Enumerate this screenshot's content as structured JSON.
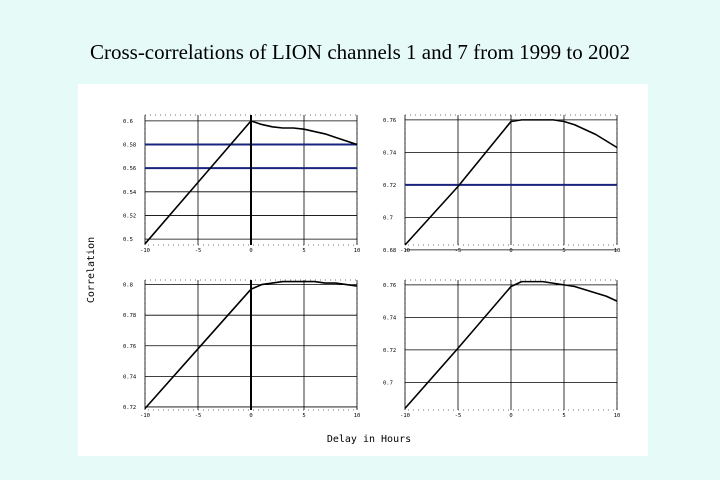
{
  "title": "Cross-correlations of LION channels 1 and 7 from 1999 to 2002",
  "chart_data": [
    {
      "type": "line",
      "xlabel": "Delay in Hours",
      "ylabel": "Correlation",
      "xlim": [
        -10,
        10
      ],
      "ylim": [
        0.495,
        0.605
      ],
      "xticks": [
        -10,
        -5,
        0,
        5,
        10
      ],
      "xtick_labels": [
        "-10",
        "-5",
        "0",
        "5",
        "10"
      ],
      "yticks": [
        0.5,
        0.52,
        0.54,
        0.56,
        0.58,
        0.6
      ],
      "ytick_labels": [
        "0.5",
        "0.52",
        "0.54",
        "0.56",
        "0.58",
        "0.6"
      ],
      "grid": true,
      "vlines": [
        0
      ],
      "hlines": [
        {
          "y": 0.58,
          "color": "#1a237e"
        },
        {
          "y": 0.56,
          "color": "#1a237e"
        }
      ],
      "x": [
        -10,
        -5,
        0,
        1,
        2,
        3,
        4,
        5,
        6,
        7,
        8,
        9,
        10
      ],
      "y": [
        0.496,
        0.548,
        0.6,
        0.597,
        0.595,
        0.594,
        0.594,
        0.593,
        0.591,
        0.589,
        0.586,
        0.583,
        0.58
      ]
    },
    {
      "type": "line",
      "xlim": [
        -10,
        10
      ],
      "ylim": [
        0.683,
        0.763
      ],
      "xticks": [
        -10,
        -5,
        0,
        5,
        10
      ],
      "xtick_labels": [
        "-10",
        "-5",
        "0",
        "5",
        "10"
      ],
      "yticks": [
        0.68,
        0.7,
        0.72,
        0.74,
        0.76
      ],
      "ytick_labels": [
        "0.68",
        "0.7",
        "0.72",
        "0.74",
        "0.76"
      ],
      "grid": true,
      "hlines": [
        {
          "y": 0.72,
          "color": "#1a237e"
        }
      ],
      "x": [
        -10,
        -5,
        0,
        1,
        2,
        3,
        4,
        5,
        6,
        7,
        8,
        9,
        10
      ],
      "y": [
        0.683,
        0.719,
        0.759,
        0.76,
        0.76,
        0.76,
        0.76,
        0.759,
        0.757,
        0.754,
        0.751,
        0.747,
        0.743
      ]
    },
    {
      "type": "line",
      "xlim": [
        -10,
        10
      ],
      "ylim": [
        0.718,
        0.803
      ],
      "xticks": [
        -10,
        -5,
        0,
        5,
        10
      ],
      "xtick_labels": [
        "-10",
        "-5",
        "0",
        "5",
        "10"
      ],
      "yticks": [
        0.72,
        0.74,
        0.76,
        0.78,
        0.8
      ],
      "ytick_labels": [
        "0.72",
        "0.74",
        "0.76",
        "0.78",
        "0.8"
      ],
      "grid": true,
      "vlines": [
        0
      ],
      "x": [
        -10,
        -5,
        0,
        1,
        2,
        3,
        4,
        5,
        6,
        7,
        8,
        9,
        10
      ],
      "y": [
        0.719,
        0.758,
        0.797,
        0.8,
        0.801,
        0.802,
        0.802,
        0.802,
        0.802,
        0.801,
        0.801,
        0.8,
        0.799
      ]
    },
    {
      "type": "line",
      "xlim": [
        -10,
        10
      ],
      "ylim": [
        0.683,
        0.763
      ],
      "xticks": [
        -10,
        -5,
        0,
        5,
        10
      ],
      "xtick_labels": [
        "-10",
        "-5",
        "0",
        "5",
        "10"
      ],
      "yticks": [
        0.7,
        0.72,
        0.74,
        0.76
      ],
      "ytick_labels": [
        "0.7",
        "0.72",
        "0.74",
        "0.76"
      ],
      "grid": true,
      "x": [
        -10,
        -5,
        0,
        1,
        2,
        3,
        4,
        5,
        6,
        7,
        8,
        9,
        10
      ],
      "y": [
        0.684,
        0.721,
        0.759,
        0.762,
        0.762,
        0.762,
        0.761,
        0.76,
        0.759,
        0.757,
        0.755,
        0.753,
        0.75
      ]
    }
  ]
}
